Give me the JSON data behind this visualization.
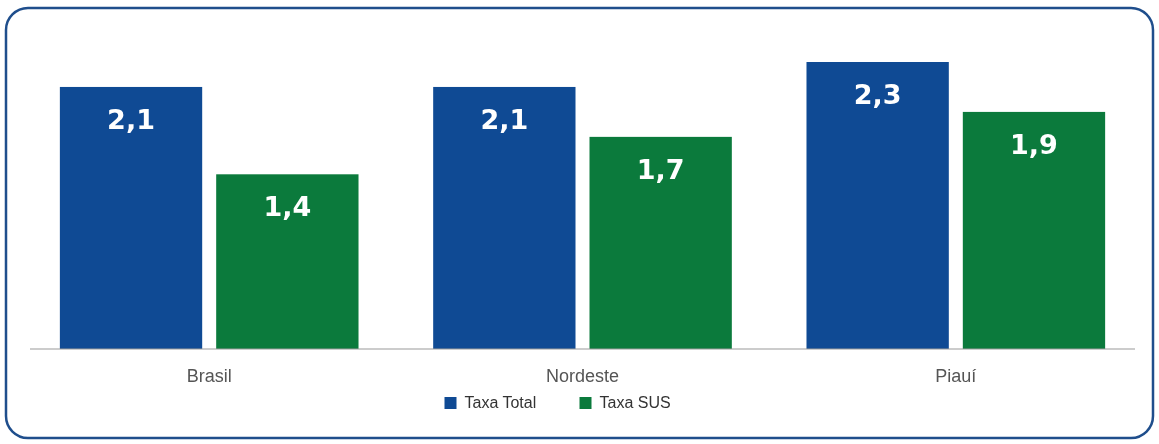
{
  "chart_data": {
    "type": "bar",
    "categories": [
      "Brasil",
      "Nordeste",
      "Piauí"
    ],
    "series": [
      {
        "name": "Taxa Total",
        "color": "#0f4a94",
        "values": [
          2.1,
          2.1,
          2.3
        ],
        "value_labels": [
          "2,1",
          "2,1",
          "2,3"
        ]
      },
      {
        "name": "Taxa SUS",
        "color": "#0b7a3c",
        "values": [
          1.4,
          1.7,
          1.9
        ],
        "value_labels": [
          "1,4",
          "1,7",
          "1,9"
        ]
      }
    ],
    "legend": "bottom"
  }
}
